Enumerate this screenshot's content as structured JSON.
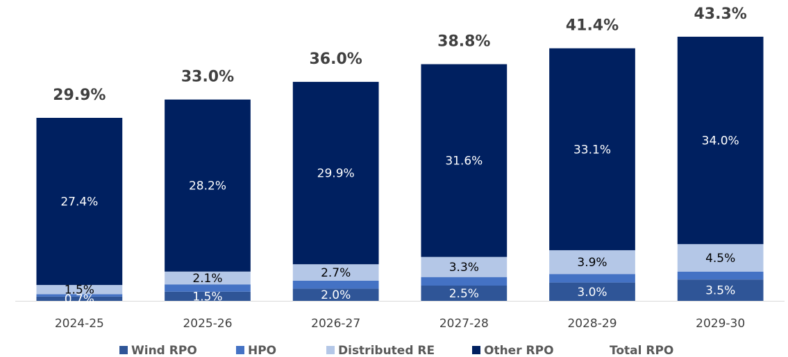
{
  "chart_data": {
    "type": "stacked-bar",
    "categories": [
      "2024-25",
      "2025-26",
      "2026-27",
      "2027-28",
      "2028-29",
      "2029-30"
    ],
    "series": [
      {
        "name": "Wind RPO",
        "color": "#2f5597",
        "label_color": "#ffffff",
        "values": [
          0.7,
          1.5,
          2.0,
          2.5,
          3.0,
          3.5
        ],
        "value_labels": [
          "0.7%",
          "1.5%",
          "2.0%",
          "2.5%",
          "3.0%",
          "3.5%"
        ]
      },
      {
        "name": "HPO",
        "color": "#4472c4",
        "values": [
          0.4,
          1.2,
          1.3,
          1.4,
          1.4,
          1.3
        ]
      },
      {
        "name": "Distributed RE",
        "color": "#b4c7e7",
        "label_color": "#000000",
        "values": [
          1.5,
          2.1,
          2.7,
          3.3,
          3.9,
          4.5
        ],
        "value_labels": [
          "1.5%",
          "2.1%",
          "2.7%",
          "3.3%",
          "3.9%",
          "4.5%"
        ]
      },
      {
        "name": "Other RPO",
        "color": "#002060",
        "label_color": "#ffffff",
        "values": [
          27.4,
          28.2,
          29.9,
          31.6,
          33.1,
          34.0
        ],
        "value_labels": [
          "27.4%",
          "28.2%",
          "29.9%",
          "31.6%",
          "33.1%",
          "34.0%"
        ]
      }
    ],
    "total": {
      "name": "Total RPO",
      "values": [
        29.9,
        33.0,
        36.0,
        38.8,
        41.4,
        43.3
      ],
      "value_labels": [
        "29.9%",
        "33.0%",
        "36.0%",
        "38.8%",
        "41.4%",
        "43.3%"
      ]
    },
    "ylim": [
      0,
      45
    ]
  }
}
